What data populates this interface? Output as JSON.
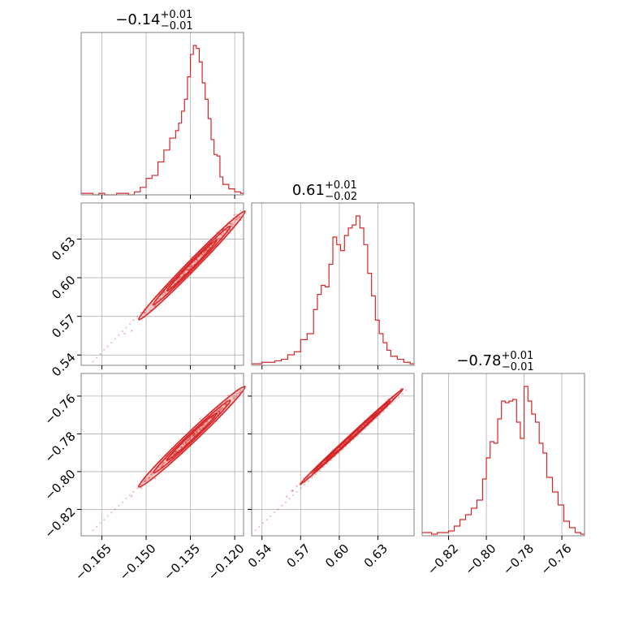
{
  "figure": {
    "accent_color": "#d62728"
  },
  "chart_data": [
    {
      "id": "hist-p1",
      "type": "bar",
      "title": {
        "value": "−0.14",
        "plus": "+0.01",
        "minus": "−0.01"
      },
      "xlim": [
        -0.172,
        -0.117
      ],
      "xticks": [
        -0.165,
        -0.15,
        -0.135,
        -0.12
      ],
      "bins": [
        -0.17,
        -0.168,
        -0.166,
        -0.164,
        -0.162,
        -0.16,
        -0.158,
        -0.156,
        -0.154,
        -0.152,
        -0.15,
        -0.148,
        -0.146,
        -0.144,
        -0.142,
        -0.14,
        -0.139,
        -0.138,
        -0.137,
        -0.136,
        -0.135,
        -0.134,
        -0.133,
        -0.132,
        -0.131,
        -0.13,
        -0.129,
        -0.128,
        -0.127,
        -0.126,
        -0.125,
        -0.124,
        -0.122,
        -0.12,
        -0.118
      ],
      "counts": [
        0.01,
        0.0,
        0.01,
        0.0,
        0.0,
        0.01,
        0.01,
        0.0,
        0.02,
        0.05,
        0.11,
        0.13,
        0.22,
        0.3,
        0.38,
        0.43,
        0.48,
        0.56,
        0.64,
        0.79,
        0.94,
        1.0,
        0.98,
        0.89,
        0.75,
        0.64,
        0.51,
        0.37,
        0.27,
        0.26,
        0.12,
        0.07,
        0.04,
        0.02,
        0.01
      ]
    },
    {
      "id": "hist-p2",
      "type": "bar",
      "title": {
        "value": "0.61",
        "plus": "+0.01",
        "minus": "−0.02"
      },
      "xlim": [
        0.532,
        0.658
      ],
      "xticks": [
        0.54,
        0.57,
        0.6,
        0.63
      ],
      "bins": [
        0.535,
        0.54,
        0.545,
        0.55,
        0.555,
        0.56,
        0.565,
        0.57,
        0.575,
        0.58,
        0.583,
        0.586,
        0.589,
        0.592,
        0.595,
        0.598,
        0.601,
        0.604,
        0.607,
        0.61,
        0.613,
        0.616,
        0.619,
        0.622,
        0.625,
        0.628,
        0.631,
        0.634,
        0.637,
        0.64,
        0.645,
        0.65,
        0.655
      ],
      "counts": [
        0.01,
        0.02,
        0.02,
        0.03,
        0.04,
        0.07,
        0.09,
        0.17,
        0.21,
        0.37,
        0.47,
        0.53,
        0.52,
        0.67,
        0.85,
        0.8,
        0.76,
        0.86,
        0.91,
        0.93,
        0.99,
        0.91,
        0.8,
        0.61,
        0.46,
        0.3,
        0.21,
        0.15,
        0.1,
        0.06,
        0.04,
        0.02,
        0.01
      ]
    },
    {
      "id": "hist-p3",
      "type": "bar",
      "title": {
        "value": "−0.78",
        "plus": "+0.01",
        "minus": "−0.01"
      },
      "xlim": [
        -0.834,
        -0.748
      ],
      "xticks": [
        -0.82,
        -0.8,
        -0.78,
        -0.76
      ],
      "bins": [
        -0.832,
        -0.829,
        -0.826,
        -0.823,
        -0.82,
        -0.817,
        -0.814,
        -0.811,
        -0.808,
        -0.805,
        -0.802,
        -0.8,
        -0.798,
        -0.796,
        -0.794,
        -0.792,
        -0.79,
        -0.788,
        -0.786,
        -0.784,
        -0.782,
        -0.78,
        -0.778,
        -0.776,
        -0.774,
        -0.772,
        -0.77,
        -0.768,
        -0.765,
        -0.762,
        -0.759,
        -0.756,
        -0.753,
        -0.75
      ],
      "counts": [
        0.02,
        0.01,
        0.02,
        0.02,
        0.03,
        0.06,
        0.1,
        0.13,
        0.17,
        0.22,
        0.35,
        0.48,
        0.58,
        0.57,
        0.72,
        0.83,
        0.82,
        0.83,
        0.84,
        0.7,
        0.6,
        0.92,
        0.83,
        0.75,
        0.7,
        0.57,
        0.51,
        0.36,
        0.27,
        0.19,
        0.09,
        0.05,
        0.02,
        0.01
      ]
    },
    {
      "id": "joint-p1-p2",
      "type": "scatter",
      "xlim": [
        -0.172,
        -0.117
      ],
      "ylim": [
        0.532,
        0.658
      ],
      "xticks": [
        -0.165,
        -0.15,
        -0.135,
        -0.12
      ],
      "yticks": [
        0.54,
        0.57,
        0.6,
        0.63
      ],
      "relation": {
        "x_from": -0.168,
        "x_to": -0.118,
        "y_from": 0.535,
        "y_to": 0.652
      },
      "contours": [
        {
          "cx": -0.1345,
          "cy": 0.6095,
          "rx_major": 0.018,
          "minor": 0.0038
        },
        {
          "cx": -0.1345,
          "cy": 0.6095,
          "rx_major": 0.013,
          "minor": 0.0026
        },
        {
          "cx": -0.1345,
          "cy": 0.6095,
          "rx_major": 0.0085,
          "minor": 0.0016
        }
      ]
    },
    {
      "id": "joint-p1-p3",
      "type": "scatter",
      "xlim": [
        -0.172,
        -0.117
      ],
      "ylim": [
        -0.834,
        -0.748
      ],
      "xticks": [
        -0.165,
        -0.15,
        -0.135,
        -0.12
      ],
      "yticks": [
        -0.82,
        -0.8,
        -0.78,
        -0.76
      ],
      "relation": {
        "x_from": -0.168,
        "x_to": -0.118,
        "y_from": -0.831,
        "y_to": -0.757
      },
      "contours": [
        {
          "cx": -0.1345,
          "cy": -0.7815,
          "rx_major": 0.018,
          "minor": 0.0028
        },
        {
          "cx": -0.1345,
          "cy": -0.7815,
          "rx_major": 0.013,
          "minor": 0.0019
        },
        {
          "cx": -0.1345,
          "cy": -0.7815,
          "rx_major": 0.0085,
          "minor": 0.0012
        }
      ]
    },
    {
      "id": "joint-p2-p3",
      "type": "scatter",
      "xlim": [
        0.532,
        0.658
      ],
      "ylim": [
        -0.834,
        -0.748
      ],
      "xticks": [
        0.54,
        0.57,
        0.6,
        0.63
      ],
      "yticks": [],
      "relation": {
        "x_from": 0.535,
        "x_to": 0.652,
        "y_from": -0.831,
        "y_to": -0.757
      },
      "contours": [
        {
          "cx": 0.6095,
          "cy": -0.7815,
          "rx_major": 0.04,
          "minor": 0.0012
        },
        {
          "cx": 0.6095,
          "cy": -0.7815,
          "rx_major": 0.03,
          "minor": 0.0008
        },
        {
          "cx": 0.6095,
          "cy": -0.7815,
          "rx_major": 0.02,
          "minor": 0.0005
        }
      ]
    }
  ],
  "tick_labels": {
    "p1": [
      "−0.165",
      "−0.150",
      "−0.135",
      "−0.120"
    ],
    "p2": [
      "0.54",
      "0.57",
      "0.60",
      "0.63"
    ],
    "p3": [
      "−0.82",
      "−0.80",
      "−0.78",
      "−0.76"
    ]
  }
}
